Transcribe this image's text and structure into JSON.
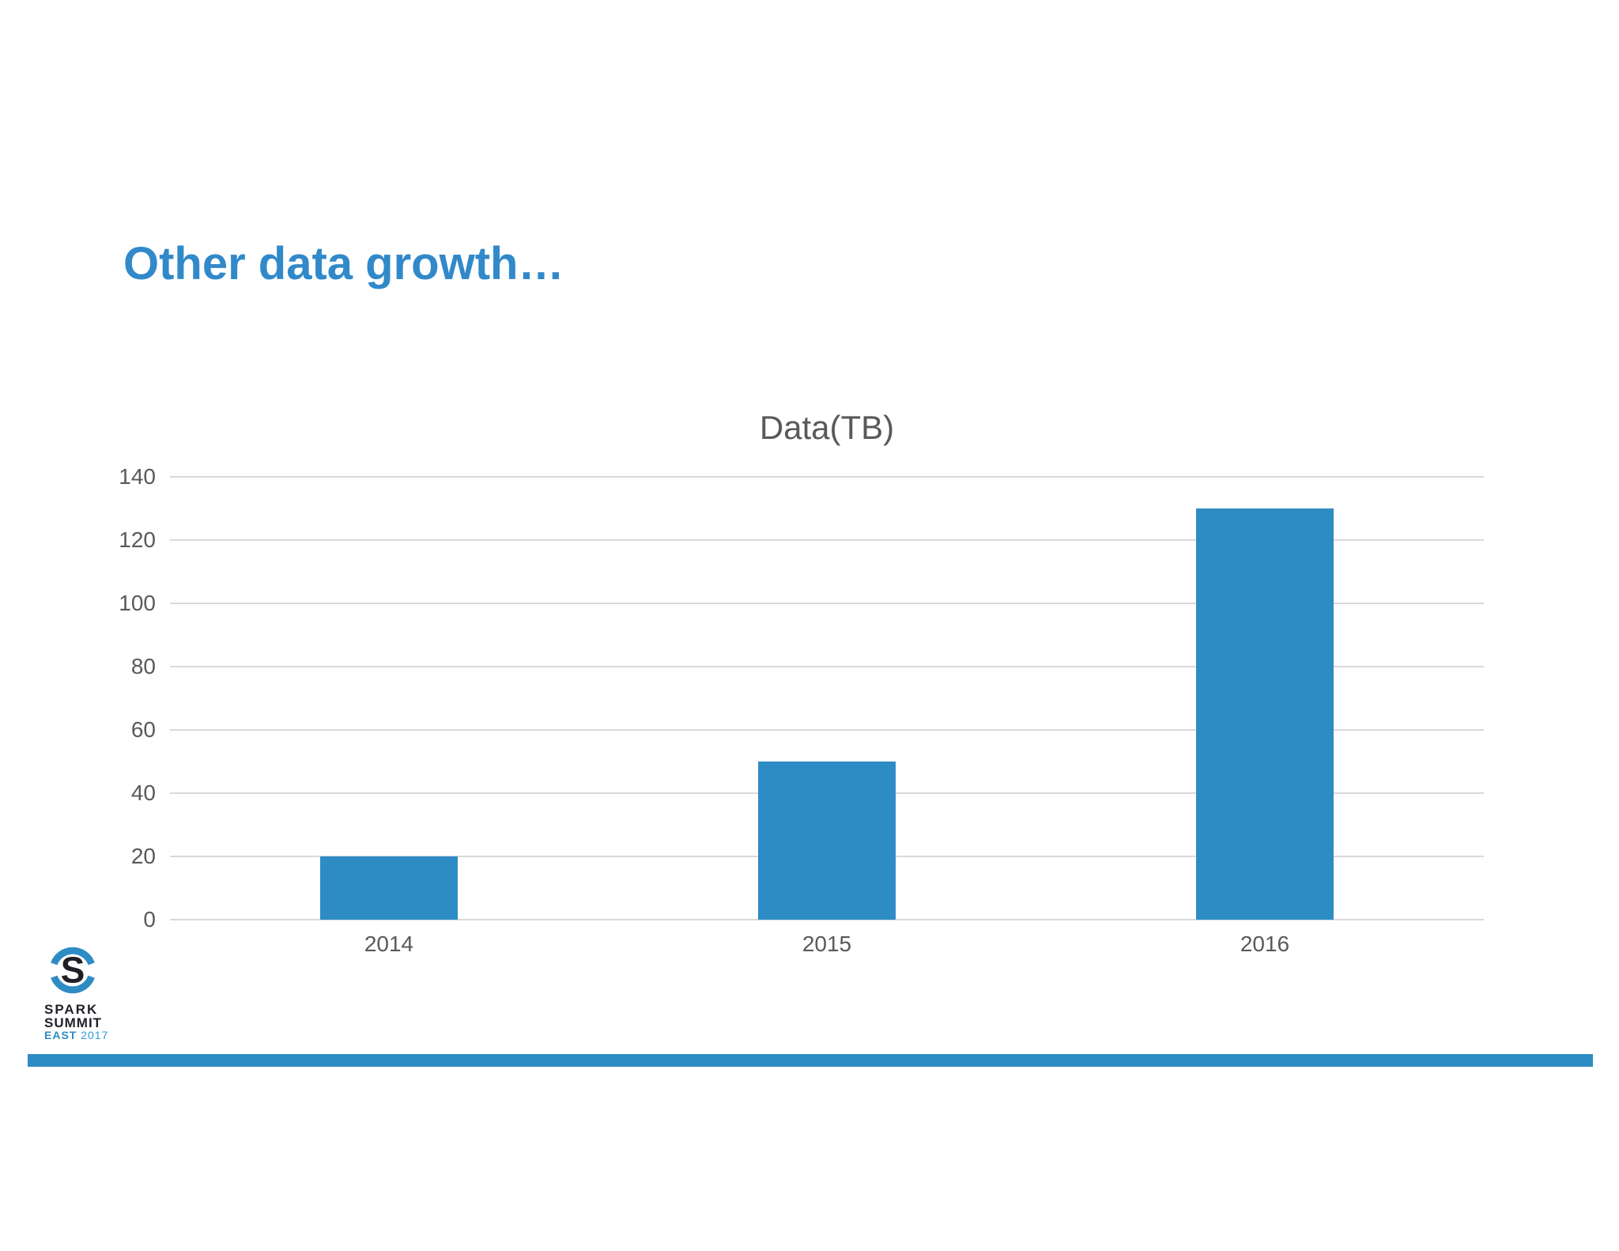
{
  "slide": {
    "title": "Other data growth…"
  },
  "chart_data": {
    "type": "bar",
    "title": "Data(TB)",
    "categories": [
      "2014",
      "2015",
      "2016"
    ],
    "values": [
      20,
      50,
      130
    ],
    "series": [
      {
        "name": "Data(TB)",
        "values": [
          20,
          50,
          130
        ]
      }
    ],
    "xlabel": "",
    "ylabel": "",
    "ylim": [
      0,
      140
    ],
    "ytick_step": 20,
    "ytick_labels": [
      "0",
      "20",
      "40",
      "60",
      "80",
      "100",
      "120",
      "140"
    ],
    "grid": true,
    "legend_position": "none",
    "bar_color": "#2e8cc5",
    "grid_color": "#d9d9d9",
    "axis_text_color": "#58595b",
    "title_color": "#595959"
  },
  "footer": {
    "logo_line1": "SPARK",
    "logo_line2": "SUMMIT",
    "logo_line3_bold": "EAST",
    "logo_line3_year": " 2017",
    "accent_bar_color": "#2e8cc5"
  },
  "colors": {
    "slide_title_blue": "#3189c9",
    "accent_blue": "#2e8cc5",
    "logo_dark": "#1f1f28"
  }
}
